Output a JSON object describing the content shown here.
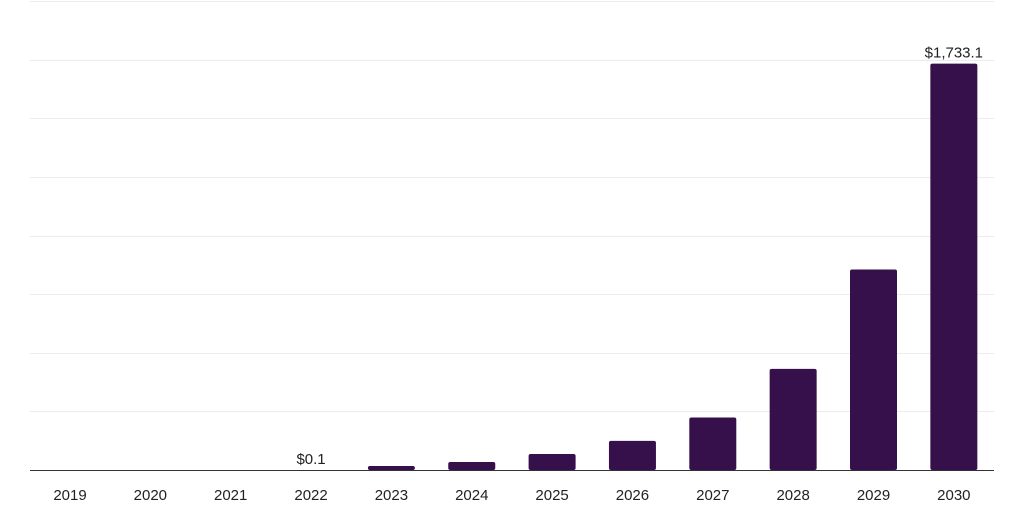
{
  "chart_data": {
    "type": "bar",
    "categories": [
      "2019",
      "2020",
      "2021",
      "2022",
      "2023",
      "2024",
      "2025",
      "2026",
      "2027",
      "2028",
      "2029",
      "2030"
    ],
    "values": [
      0,
      0,
      0,
      0.1,
      17,
      34,
      68,
      124,
      224,
      431,
      855,
      1733.1
    ],
    "data_labels": {
      "3": "$0.1",
      "11": "$1,733.1"
    },
    "title": "",
    "xlabel": "",
    "ylabel": "",
    "ylim": [
      0,
      2000
    ],
    "grid": true,
    "legend": "none",
    "bar_color": "#36104a",
    "grid_color": "#ececec",
    "axis_color": "#333333",
    "text_color": "#222222"
  }
}
